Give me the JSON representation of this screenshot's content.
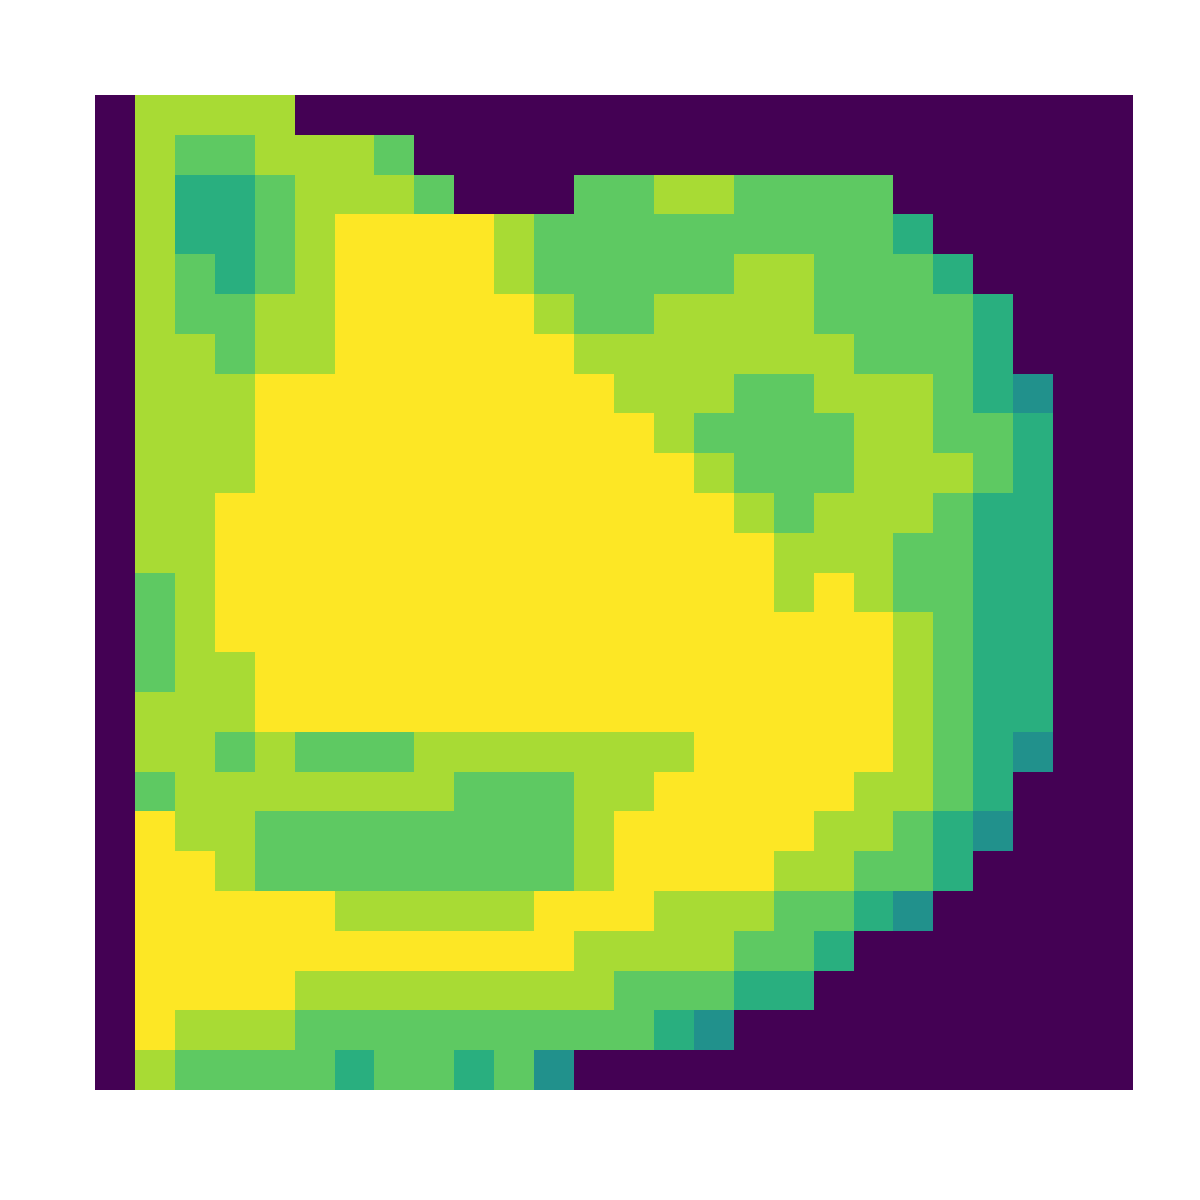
{
  "chart_data": {
    "type": "heatmap",
    "tick_labels": false,
    "cells": [
      [
        0,
        0.87,
        0.87,
        0.87,
        0.87,
        0,
        0,
        0,
        0,
        0,
        0,
        0,
        0,
        0,
        0,
        0,
        0,
        0,
        0,
        0,
        0,
        0,
        0,
        0,
        0,
        0
      ],
      [
        0,
        0.87,
        0.75,
        0.75,
        0.87,
        0.87,
        0.87,
        0.75,
        0,
        0,
        0,
        0,
        0,
        0,
        0,
        0,
        0,
        0,
        0,
        0,
        0,
        0,
        0,
        0,
        0,
        0
      ],
      [
        0,
        0.87,
        0.63,
        0.63,
        0.75,
        0.87,
        0.87,
        0.87,
        0.75,
        0,
        0,
        0,
        0.75,
        0.75,
        0.87,
        0.87,
        0.75,
        0.75,
        0.75,
        0.75,
        0,
        0,
        0,
        0,
        0,
        0
      ],
      [
        0,
        0.87,
        0.63,
        0.63,
        0.75,
        0.87,
        1,
        1,
        1,
        1,
        0.87,
        0.75,
        0.75,
        0.75,
        0.75,
        0.75,
        0.75,
        0.75,
        0.75,
        0.75,
        0.63,
        0,
        0,
        0,
        0,
        0
      ],
      [
        0,
        0.87,
        0.75,
        0.63,
        0.75,
        0.87,
        1,
        1,
        1,
        1,
        0.87,
        0.75,
        0.75,
        0.75,
        0.75,
        0.75,
        0.87,
        0.87,
        0.75,
        0.75,
        0.75,
        0.63,
        0,
        0,
        0,
        0
      ],
      [
        0,
        0.87,
        0.75,
        0.75,
        0.87,
        0.87,
        1,
        1,
        1,
        1,
        1,
        0.87,
        0.75,
        0.75,
        0.87,
        0.87,
        0.87,
        0.87,
        0.75,
        0.75,
        0.75,
        0.75,
        0.63,
        0,
        0,
        0
      ],
      [
        0,
        0.87,
        0.87,
        0.75,
        0.87,
        0.87,
        1,
        1,
        1,
        1,
        1,
        1,
        0.87,
        0.87,
        0.87,
        0.87,
        0.87,
        0.87,
        0.87,
        0.75,
        0.75,
        0.75,
        0.63,
        0,
        0,
        0
      ],
      [
        0,
        0.87,
        0.87,
        0.87,
        1,
        1,
        1,
        1,
        1,
        1,
        1,
        1,
        1,
        0.87,
        0.87,
        0.87,
        0.75,
        0.75,
        0.87,
        0.87,
        0.87,
        0.75,
        0.63,
        0.5,
        0,
        0
      ],
      [
        0,
        0.87,
        0.87,
        0.87,
        1,
        1,
        1,
        1,
        1,
        1,
        1,
        1,
        1,
        1,
        0.87,
        0.75,
        0.75,
        0.75,
        0.75,
        0.87,
        0.87,
        0.75,
        0.75,
        0.63,
        0,
        0
      ],
      [
        0,
        0.87,
        0.87,
        0.87,
        1,
        1,
        1,
        1,
        1,
        1,
        1,
        1,
        1,
        1,
        1,
        0.87,
        0.75,
        0.75,
        0.75,
        0.87,
        0.87,
        0.87,
        0.75,
        0.63,
        0,
        0
      ],
      [
        0,
        0.87,
        0.87,
        1,
        1,
        1,
        1,
        1,
        1,
        1,
        1,
        1,
        1,
        1,
        1,
        1,
        0.87,
        0.75,
        0.87,
        0.87,
        0.87,
        0.75,
        0.63,
        0.63,
        0,
        0
      ],
      [
        0,
        0.87,
        0.87,
        1,
        1,
        1,
        1,
        1,
        1,
        1,
        1,
        1,
        1,
        1,
        1,
        1,
        1,
        0.87,
        0.87,
        0.87,
        0.75,
        0.75,
        0.63,
        0.63,
        0,
        0
      ],
      [
        0,
        0.75,
        0.87,
        1,
        1,
        1,
        1,
        1,
        1,
        1,
        1,
        1,
        1,
        1,
        1,
        1,
        1,
        0.87,
        1,
        0.87,
        0.75,
        0.75,
        0.63,
        0.63,
        0,
        0
      ],
      [
        0,
        0.75,
        0.87,
        1,
        1,
        1,
        1,
        1,
        1,
        1,
        1,
        1,
        1,
        1,
        1,
        1,
        1,
        1,
        1,
        1,
        0.87,
        0.75,
        0.63,
        0.63,
        0,
        0
      ],
      [
        0,
        0.75,
        0.87,
        0.87,
        1,
        1,
        1,
        1,
        1,
        1,
        1,
        1,
        1,
        1,
        1,
        1,
        1,
        1,
        1,
        1,
        0.87,
        0.75,
        0.63,
        0.63,
        0,
        0
      ],
      [
        0,
        0.87,
        0.87,
        0.87,
        1,
        1,
        1,
        1,
        1,
        1,
        1,
        1,
        1,
        1,
        1,
        1,
        1,
        1,
        1,
        1,
        0.87,
        0.75,
        0.63,
        0.63,
        0,
        0
      ],
      [
        0,
        0.87,
        0.87,
        0.75,
        0.87,
        0.75,
        0.75,
        0.75,
        0.87,
        0.87,
        0.87,
        0.87,
        0.87,
        0.87,
        0.87,
        1,
        1,
        1,
        1,
        1,
        0.87,
        0.75,
        0.63,
        0.5,
        0,
        0
      ],
      [
        0,
        0.75,
        0.87,
        0.87,
        0.87,
        0.87,
        0.87,
        0.87,
        0.87,
        0.75,
        0.75,
        0.75,
        0.87,
        0.87,
        1,
        1,
        1,
        1,
        1,
        0.87,
        0.87,
        0.75,
        0.63,
        0,
        0,
        0
      ],
      [
        0,
        1,
        0.87,
        0.87,
        0.75,
        0.75,
        0.75,
        0.75,
        0.75,
        0.75,
        0.75,
        0.75,
        0.87,
        1,
        1,
        1,
        1,
        1,
        0.87,
        0.87,
        0.75,
        0.63,
        0.5,
        0,
        0,
        0
      ],
      [
        0,
        1,
        1,
        0.87,
        0.75,
        0.75,
        0.75,
        0.75,
        0.75,
        0.75,
        0.75,
        0.75,
        0.87,
        1,
        1,
        1,
        1,
        0.87,
        0.87,
        0.75,
        0.75,
        0.63,
        0,
        0,
        0,
        0
      ],
      [
        0,
        1,
        1,
        1,
        1,
        1,
        0.87,
        0.87,
        0.87,
        0.87,
        0.87,
        1,
        1,
        1,
        0.87,
        0.87,
        0.87,
        0.75,
        0.75,
        0.63,
        0.5,
        0,
        0,
        0,
        0,
        0
      ],
      [
        0,
        1,
        1,
        1,
        1,
        1,
        1,
        1,
        1,
        1,
        1,
        1,
        0.87,
        0.87,
        0.87,
        0.87,
        0.75,
        0.75,
        0.63,
        0,
        0,
        0,
        0,
        0,
        0,
        0
      ],
      [
        0,
        1,
        1,
        1,
        1,
        0.87,
        0.87,
        0.87,
        0.87,
        0.87,
        0.87,
        0.87,
        0.87,
        0.75,
        0.75,
        0.75,
        0.63,
        0.63,
        0,
        0,
        0,
        0,
        0,
        0,
        0,
        0
      ],
      [
        0,
        1,
        0.87,
        0.87,
        0.87,
        0.75,
        0.75,
        0.75,
        0.75,
        0.75,
        0.75,
        0.75,
        0.75,
        0.75,
        0.63,
        0.5,
        0,
        0,
        0,
        0,
        0,
        0,
        0,
        0,
        0,
        0
      ],
      [
        0,
        0.87,
        0.75,
        0.75,
        0.75,
        0.75,
        0.63,
        0.75,
        0.75,
        0.63,
        0.75,
        0.5,
        0,
        0,
        0,
        0,
        0,
        0,
        0,
        0,
        0,
        0,
        0,
        0,
        0,
        0
      ]
    ]
  }
}
